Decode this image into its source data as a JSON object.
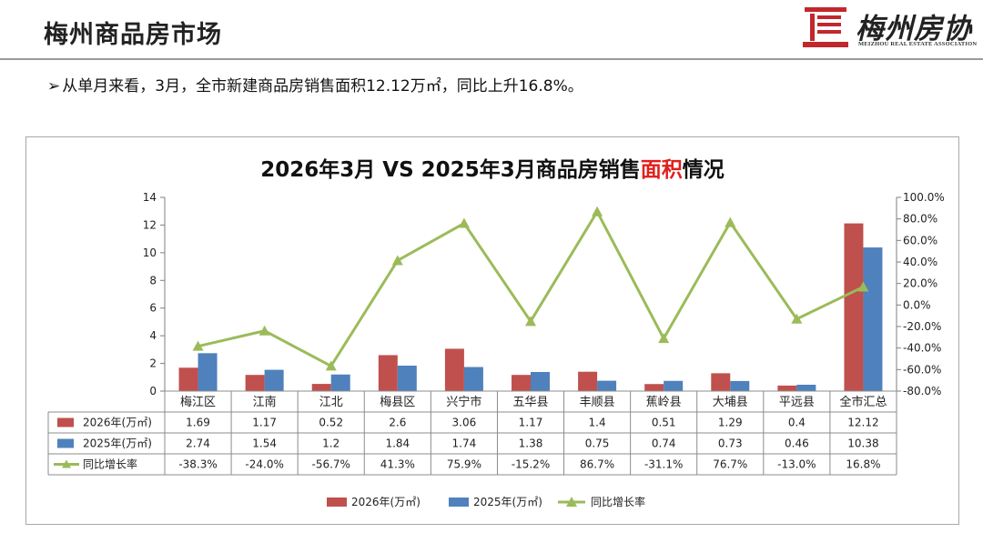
{
  "header": {
    "title": "梅州商品房市场",
    "logo_text": "梅州房协",
    "logo_subtext": "MEIZHOU REAL ESTATE ASSOCIATION"
  },
  "bullet": {
    "arrow": "➢",
    "text": "从单月来看，3月，全市新建商品房销售面积12.12万㎡，同比上升16.8%。"
  },
  "colors": {
    "bar_2026": "#c0504d",
    "bar_2025": "#4f81bd",
    "growth_line": "#9bbb59",
    "title_highlight": "#e0201c"
  },
  "chart_data": {
    "type": "bar",
    "title_parts": {
      "prefix": "2026年3月 VS 2025年3月商品房销售",
      "highlight": "面积",
      "suffix": "情况"
    },
    "categories": [
      "梅江区",
      "江南",
      "江北",
      "梅县区",
      "兴宁市",
      "五华县",
      "丰顺县",
      "蕉岭县",
      "大埔县",
      "平远县",
      "全市汇总"
    ],
    "series": [
      {
        "name": "2026年(万㎡)",
        "type": "bar",
        "axis": "left",
        "values": [
          1.69,
          1.17,
          0.52,
          2.6,
          3.06,
          1.17,
          1.4,
          0.51,
          1.29,
          0.4,
          12.12
        ],
        "labels": [
          "1.69",
          "1.17",
          "0.52",
          "2.6",
          "3.06",
          "1.17",
          "1.4",
          "0.51",
          "1.29",
          "0.4",
          "12.12"
        ]
      },
      {
        "name": "2025年(万㎡)",
        "type": "bar",
        "axis": "left",
        "values": [
          2.74,
          1.54,
          1.2,
          1.84,
          1.74,
          1.38,
          0.75,
          0.74,
          0.73,
          0.46,
          10.38
        ],
        "labels": [
          "2.74",
          "1.54",
          "1.2",
          "1.84",
          "1.74",
          "1.38",
          "0.75",
          "0.74",
          "0.73",
          "0.46",
          "10.38"
        ]
      },
      {
        "name": "同比增长率",
        "type": "line",
        "axis": "right",
        "values": [
          -38.3,
          -24.0,
          -56.7,
          41.3,
          75.9,
          -15.2,
          86.7,
          -31.1,
          76.7,
          -13.0,
          16.8
        ],
        "labels": [
          "-38.3%",
          "-24.0%",
          "-56.7%",
          "41.3%",
          "75.9%",
          "-15.2%",
          "86.7%",
          "-31.1%",
          "76.7%",
          "-13.0%",
          "16.8%"
        ]
      }
    ],
    "y_left": {
      "min": 0,
      "max": 14,
      "ticks": [
        "0",
        "2",
        "4",
        "6",
        "8",
        "10",
        "12",
        "14"
      ]
    },
    "y_right": {
      "min": -80,
      "max": 100,
      "ticks": [
        "-80.0%",
        "-60.0%",
        "-40.0%",
        "-20.0%",
        "0.0%",
        "20.0%",
        "40.0%",
        "60.0%",
        "80.0%",
        "100.0%"
      ]
    },
    "data_table": true,
    "legend": "bottom",
    "grid": false
  }
}
